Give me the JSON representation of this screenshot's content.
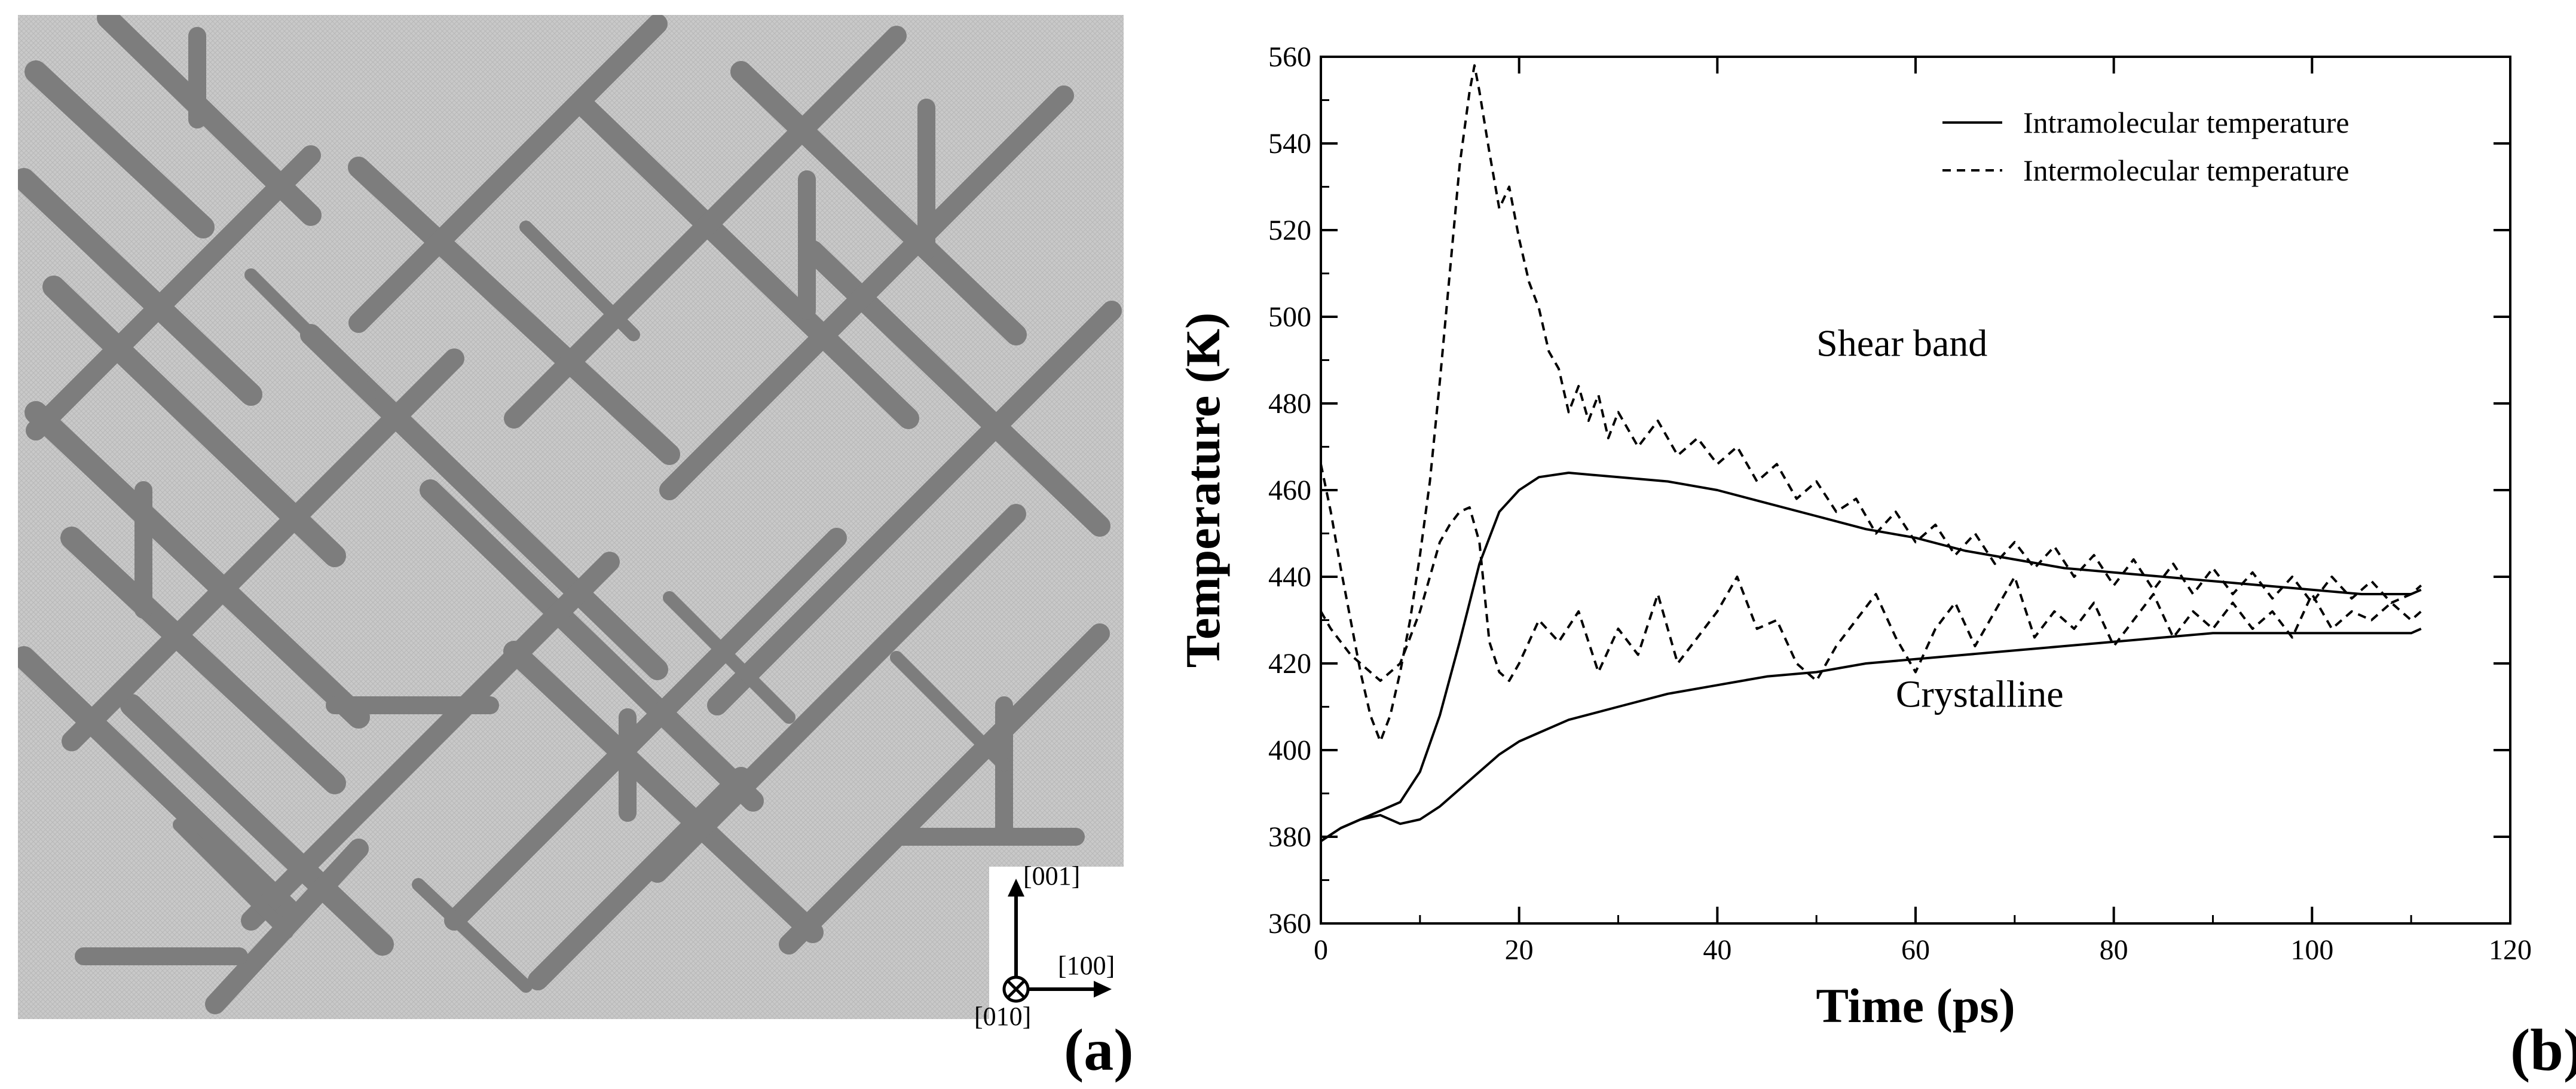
{
  "panel_a": {
    "label": "(a)",
    "axes": {
      "up": "[001]",
      "right": "[100]",
      "out_of_plane": "[010]"
    }
  },
  "panel_b": {
    "label": "(b)"
  },
  "chart_data": {
    "type": "line",
    "title": "",
    "xlabel": "Time (ps)",
    "ylabel": "Temperature (K)",
    "xlim": [
      0,
      120
    ],
    "ylim": [
      360,
      560
    ],
    "x_ticks": [
      0,
      20,
      40,
      60,
      80,
      100,
      120
    ],
    "y_ticks": [
      360,
      380,
      400,
      420,
      440,
      460,
      480,
      500,
      520,
      540,
      560
    ],
    "grid": false,
    "legend_position": "top-right",
    "legend": [
      {
        "label": "Intramolecular temperature",
        "style": "solid"
      },
      {
        "label": "Intermolecular temperature",
        "style": "dashed"
      }
    ],
    "annotations": [
      {
        "text": "Shear band",
        "x": 50,
        "y": 491
      },
      {
        "text": "Crystalline",
        "x": 58,
        "y": 410
      }
    ],
    "series": [
      {
        "name": "Intramolecular temperature (Shear band)",
        "style": "solid",
        "x": [
          0,
          2,
          4,
          6,
          8,
          10,
          12,
          14,
          16,
          18,
          20,
          22,
          25,
          30,
          35,
          40,
          45,
          50,
          55,
          60,
          65,
          70,
          75,
          80,
          85,
          90,
          95,
          100,
          105,
          110,
          111
        ],
        "y": [
          379,
          382,
          384,
          386,
          388,
          395,
          408,
          425,
          443,
          455,
          460,
          463,
          464,
          463,
          462,
          460,
          457,
          454,
          451,
          449,
          446,
          444,
          442,
          441,
          440,
          439,
          438,
          437,
          436,
          436,
          437
        ]
      },
      {
        "name": "Intramolecular temperature (Crystalline)",
        "style": "solid",
        "x": [
          0,
          2,
          4,
          6,
          8,
          10,
          12,
          14,
          16,
          18,
          20,
          22,
          25,
          30,
          35,
          40,
          45,
          50,
          55,
          60,
          65,
          70,
          75,
          80,
          85,
          90,
          95,
          100,
          105,
          110,
          111
        ],
        "y": [
          379,
          382,
          384,
          385,
          383,
          384,
          387,
          391,
          395,
          399,
          402,
          404,
          407,
          410,
          413,
          415,
          417,
          418,
          420,
          421,
          422,
          423,
          424,
          425,
          426,
          427,
          427,
          427,
          427,
          427,
          428
        ]
      },
      {
        "name": "Intermolecular temperature (Shear band)",
        "style": "dashed",
        "x": [
          0,
          1,
          2,
          3,
          4,
          5,
          6,
          7,
          8,
          9,
          10,
          11,
          12,
          13,
          14,
          15,
          15.5,
          16,
          17,
          18,
          19,
          20,
          21,
          22,
          23,
          24,
          25,
          26,
          27,
          28,
          29,
          30,
          32,
          34,
          36,
          38,
          40,
          42,
          44,
          46,
          48,
          50,
          52,
          54,
          56,
          58,
          60,
          62,
          64,
          66,
          68,
          70,
          72,
          74,
          76,
          78,
          80,
          82,
          84,
          86,
          88,
          90,
          92,
          94,
          96,
          98,
          100,
          102,
          104,
          106,
          108,
          110,
          111
        ],
        "y": [
          466,
          455,
          442,
          430,
          418,
          408,
          402,
          408,
          418,
          430,
          445,
          462,
          485,
          510,
          535,
          552,
          558,
          552,
          538,
          525,
          530,
          518,
          508,
          502,
          492,
          488,
          478,
          484,
          476,
          482,
          472,
          478,
          470,
          476,
          468,
          472,
          466,
          470,
          462,
          466,
          458,
          462,
          455,
          458,
          450,
          455,
          448,
          452,
          445,
          450,
          443,
          448,
          442,
          447,
          440,
          445,
          438,
          444,
          437,
          443,
          436,
          442,
          436,
          441,
          435,
          440,
          434,
          440,
          435,
          439,
          434,
          436,
          438
        ]
      },
      {
        "name": "Intermolecular temperature (Crystalline)",
        "style": "dashed",
        "x": [
          0,
          1,
          2,
          3,
          4,
          5,
          6,
          7,
          8,
          9,
          10,
          11,
          12,
          13,
          14,
          15,
          16,
          17,
          18,
          19,
          20,
          22,
          24,
          26,
          28,
          30,
          32,
          34,
          36,
          38,
          40,
          42,
          44,
          46,
          48,
          50,
          52,
          54,
          56,
          58,
          60,
          62,
          64,
          66,
          68,
          70,
          72,
          74,
          76,
          78,
          80,
          82,
          84,
          86,
          88,
          90,
          92,
          94,
          96,
          98,
          100,
          102,
          104,
          106,
          108,
          110,
          111
        ],
        "y": [
          432,
          428,
          425,
          422,
          420,
          418,
          416,
          418,
          420,
          426,
          432,
          440,
          448,
          452,
          455,
          456,
          448,
          425,
          418,
          416,
          420,
          430,
          425,
          432,
          418,
          428,
          422,
          436,
          420,
          426,
          432,
          440,
          428,
          430,
          420,
          416,
          424,
          430,
          436,
          426,
          418,
          428,
          434,
          424,
          432,
          440,
          426,
          432,
          428,
          434,
          424,
          430,
          436,
          426,
          432,
          428,
          434,
          428,
          432,
          426,
          436,
          428,
          432,
          430,
          434,
          430,
          432
        ]
      }
    ]
  }
}
